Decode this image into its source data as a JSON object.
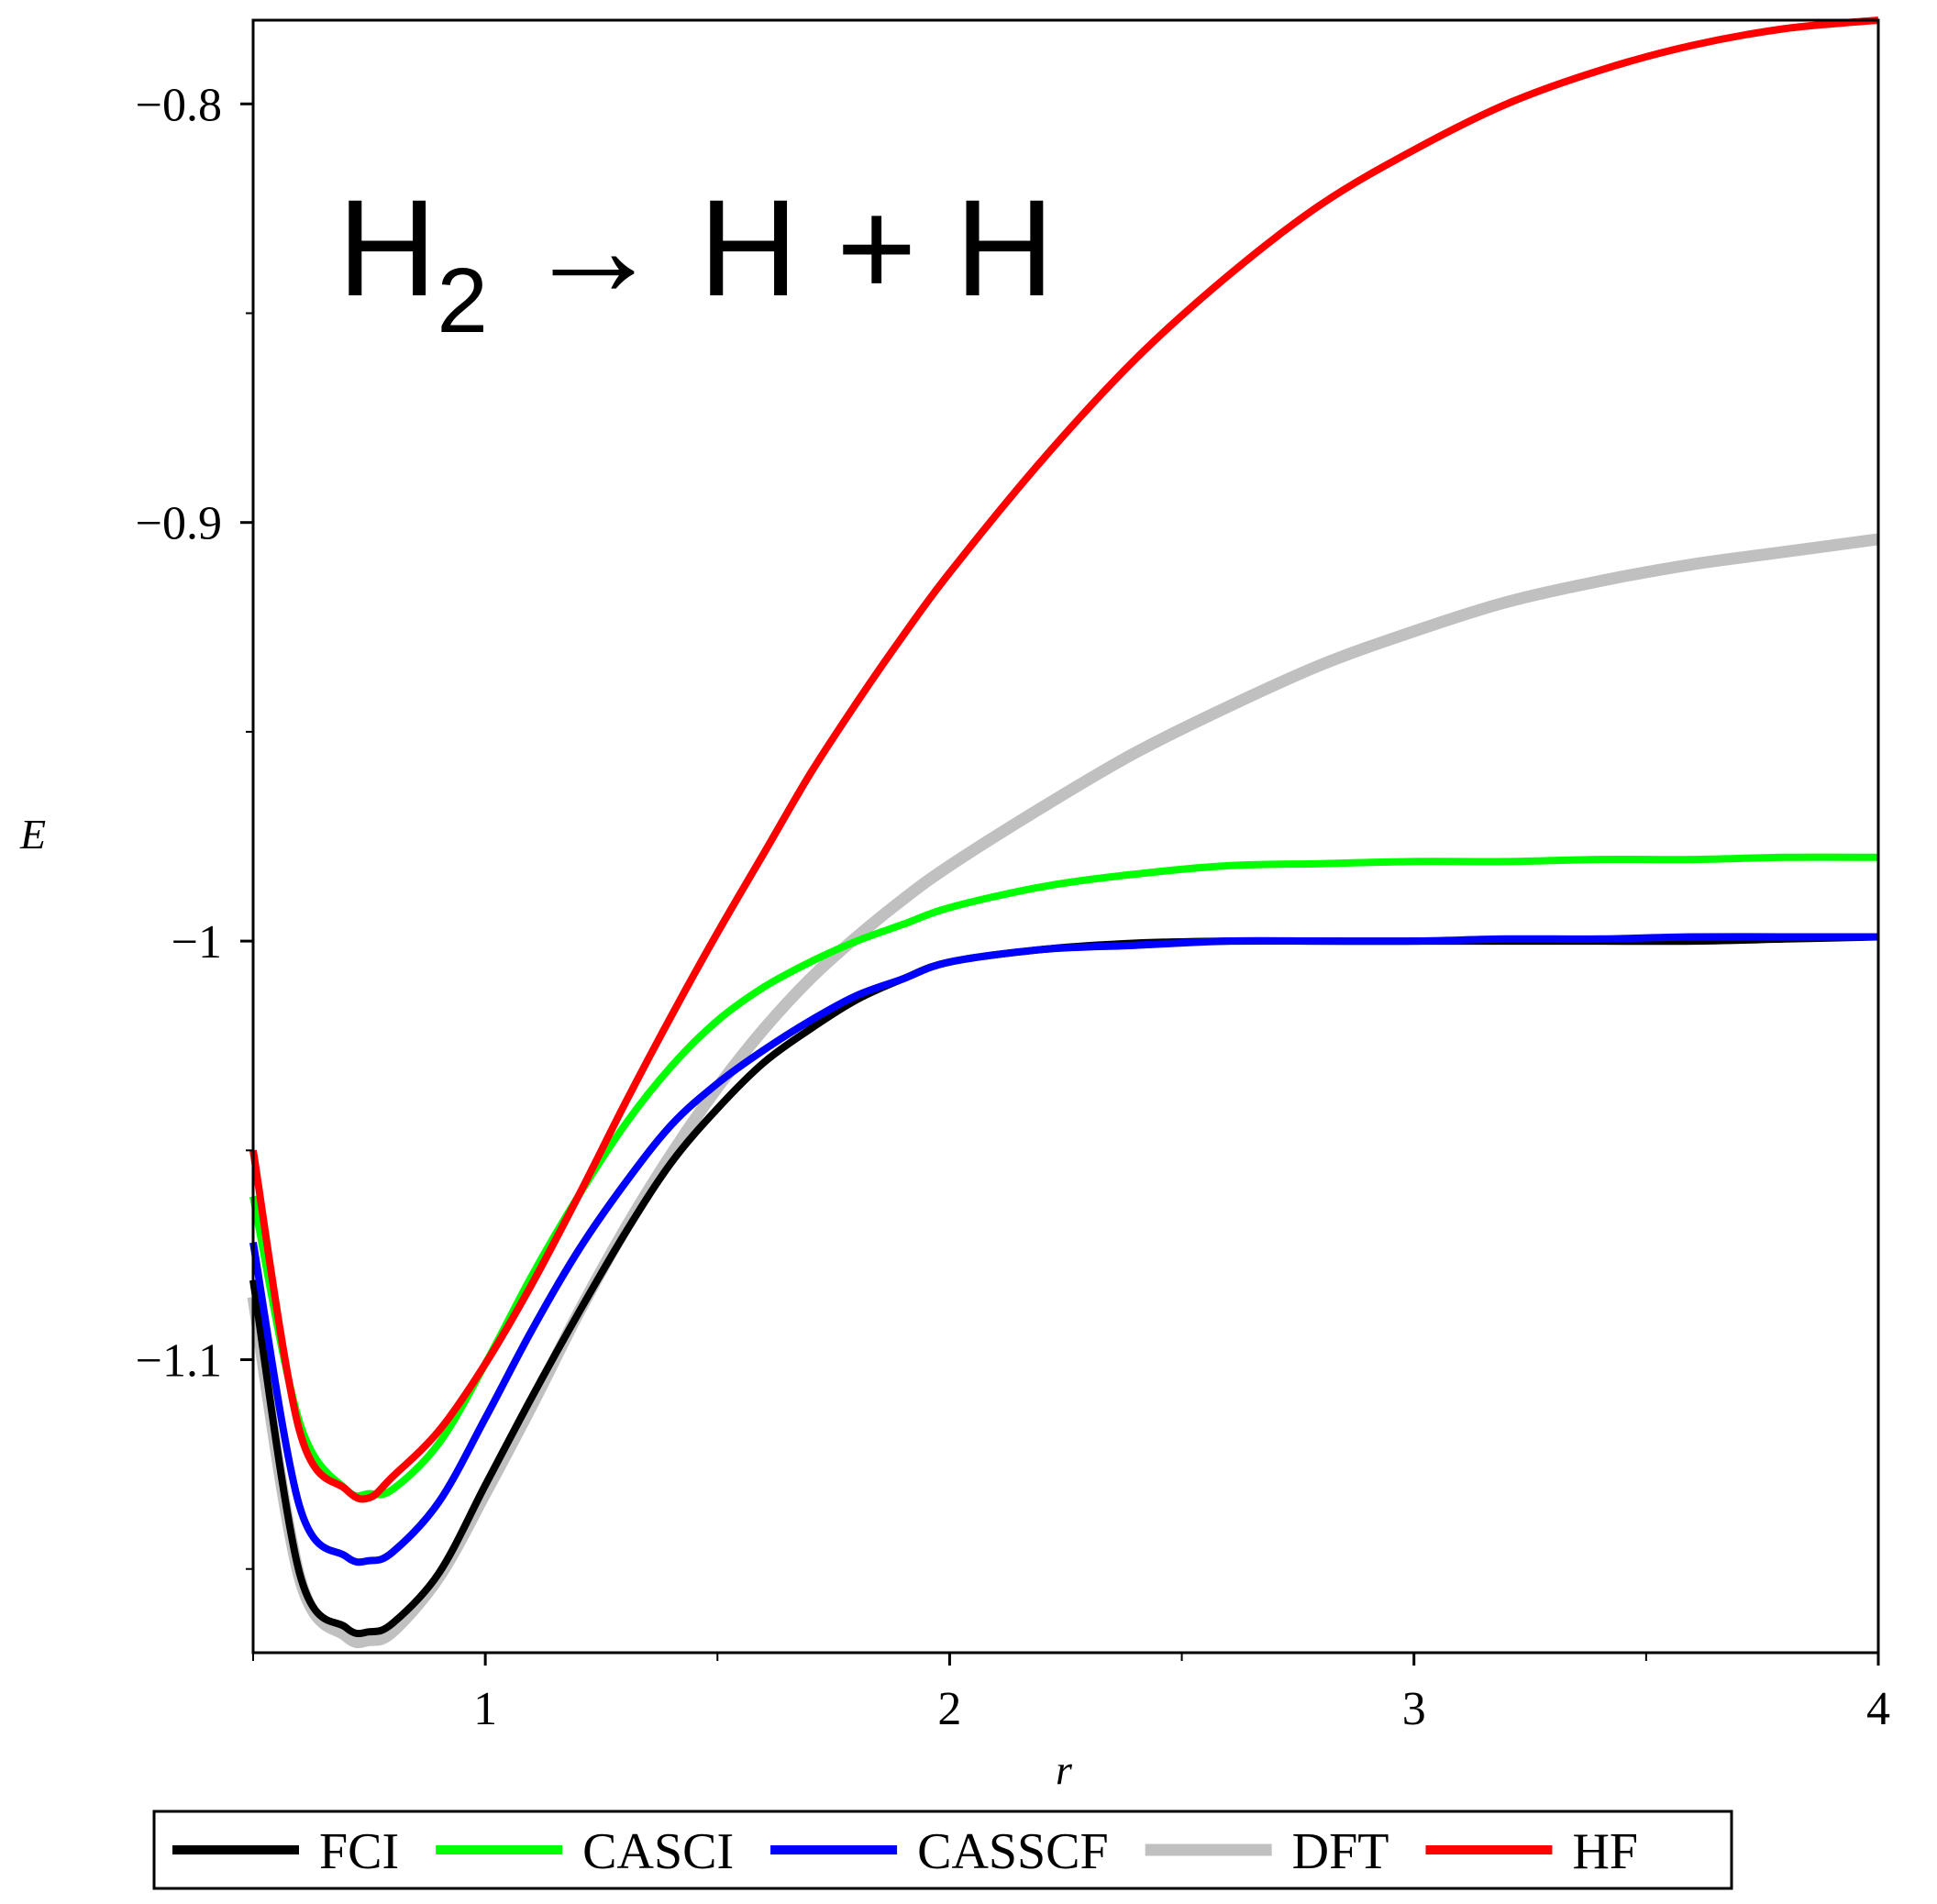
{
  "chart_data": {
    "type": "line",
    "xlabel": "r",
    "ylabel": "E",
    "xlim": [
      0.5,
      4.0
    ],
    "ylim": [
      -1.17,
      -0.78
    ],
    "x_ticks": [
      1,
      2,
      3,
      4
    ],
    "x_tick_labels": [
      "1",
      "2",
      "3",
      "4"
    ],
    "y_ticks": [
      -1.1,
      -1.0,
      -0.9,
      -0.8
    ],
    "y_tick_labels": [
      "−1.1",
      "−1",
      "−0.9",
      "−0.8"
    ],
    "grid": false,
    "legend_position": "bottom",
    "annotation": {
      "molecule": "H",
      "subscript": "2",
      "arrow": "→",
      "products": "H + H"
    },
    "series": [
      {
        "name": "DFT",
        "color": "#c0c0c0",
        "x": [
          0.5,
          0.6,
          0.7,
          0.75,
          0.8,
          0.9,
          1.0,
          1.1,
          1.2,
          1.3,
          1.4,
          1.5,
          1.6,
          1.7,
          1.8,
          1.9,
          2.0,
          2.2,
          2.4,
          2.6,
          2.8,
          3.0,
          3.2,
          3.4,
          3.6,
          3.8,
          4.0
        ],
        "y": [
          -1.085,
          -1.152,
          -1.166,
          -1.167,
          -1.165,
          -1.152,
          -1.132,
          -1.111,
          -1.089,
          -1.069,
          -1.051,
          -1.035,
          -1.021,
          -1.009,
          -0.999,
          -0.99,
          -0.982,
          -0.968,
          -0.955,
          -0.944,
          -0.934,
          -0.926,
          -0.919,
          -0.914,
          -0.91,
          -0.907,
          -0.904
        ]
      },
      {
        "name": "FCI",
        "color": "#000000",
        "x": [
          0.5,
          0.6,
          0.7,
          0.75,
          0.8,
          0.9,
          1.0,
          1.1,
          1.2,
          1.3,
          1.4,
          1.5,
          1.6,
          1.7,
          1.8,
          1.9,
          2.0,
          2.2,
          2.4,
          2.6,
          2.8,
          3.0,
          3.2,
          3.4,
          3.6,
          3.8,
          4.0
        ],
        "y": [
          -1.081,
          -1.151,
          -1.164,
          -1.165,
          -1.163,
          -1.151,
          -1.13,
          -1.109,
          -1.089,
          -1.07,
          -1.053,
          -1.04,
          -1.029,
          -1.021,
          -1.014,
          -1.009,
          -1.005,
          -1.002,
          -1.0005,
          -1.0,
          -1.0,
          -1.0,
          -1.0,
          -1.0,
          -1.0,
          -0.9995,
          -0.999
        ]
      },
      {
        "name": "CASCI",
        "color": "#00ff00",
        "x": [
          0.5,
          0.6,
          0.7,
          0.75,
          0.8,
          0.9,
          1.0,
          1.1,
          1.2,
          1.3,
          1.4,
          1.5,
          1.6,
          1.7,
          1.8,
          1.9,
          2.0,
          2.2,
          2.4,
          2.6,
          2.8,
          3.0,
          3.2,
          3.4,
          3.6,
          3.8,
          4.0
        ],
        "y": [
          -1.061,
          -1.115,
          -1.131,
          -1.132,
          -1.131,
          -1.12,
          -1.101,
          -1.08,
          -1.061,
          -1.044,
          -1.03,
          -1.019,
          -1.011,
          -1.005,
          -1.0,
          -0.996,
          -0.992,
          -0.987,
          -0.984,
          -0.982,
          -0.9815,
          -0.981,
          -0.981,
          -0.9805,
          -0.9805,
          -0.98,
          -0.98
        ]
      },
      {
        "name": "CASSCF",
        "color": "#0000ff",
        "x": [
          0.5,
          0.6,
          0.7,
          0.75,
          0.8,
          0.9,
          1.0,
          1.1,
          1.2,
          1.3,
          1.4,
          1.5,
          1.6,
          1.7,
          1.8,
          1.9,
          2.0,
          2.2,
          2.4,
          2.6,
          2.8,
          3.0,
          3.2,
          3.4,
          3.6,
          3.8,
          4.0
        ],
        "y": [
          -1.072,
          -1.135,
          -1.147,
          -1.148,
          -1.146,
          -1.134,
          -1.114,
          -1.093,
          -1.074,
          -1.058,
          -1.044,
          -1.034,
          -1.026,
          -1.019,
          -1.013,
          -1.009,
          -1.005,
          -1.002,
          -1.001,
          -1.0,
          -1.0,
          -1.0,
          -0.9995,
          -0.9995,
          -0.999,
          -0.999,
          -0.999
        ]
      },
      {
        "name": "HF",
        "color": "#ff0000",
        "x": [
          0.5,
          0.6,
          0.7,
          0.75,
          0.8,
          0.9,
          1.0,
          1.1,
          1.2,
          1.3,
          1.4,
          1.5,
          1.6,
          1.7,
          1.8,
          1.9,
          2.0,
          2.2,
          2.4,
          2.6,
          2.8,
          3.0,
          3.2,
          3.4,
          3.6,
          3.8,
          4.0
        ],
        "y": [
          -1.05,
          -1.117,
          -1.131,
          -1.133,
          -1.128,
          -1.117,
          -1.101,
          -1.082,
          -1.061,
          -1.039,
          -1.018,
          -0.998,
          -0.979,
          -0.96,
          -0.943,
          -0.927,
          -0.912,
          -0.885,
          -0.861,
          -0.841,
          -0.824,
          -0.811,
          -0.8,
          -0.792,
          -0.786,
          -0.782,
          -0.78
        ]
      }
    ],
    "legend_order": [
      "FCI",
      "CASCI",
      "CASSCF",
      "DFT",
      "HF"
    ]
  }
}
